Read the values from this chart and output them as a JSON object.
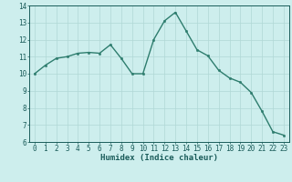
{
  "x": [
    0,
    1,
    2,
    3,
    4,
    5,
    6,
    7,
    8,
    9,
    10,
    11,
    12,
    13,
    14,
    15,
    16,
    17,
    18,
    19,
    20,
    21,
    22,
    23
  ],
  "y": [
    10.0,
    10.5,
    10.9,
    11.0,
    11.2,
    11.25,
    11.2,
    11.7,
    10.9,
    10.0,
    10.0,
    12.0,
    13.1,
    13.6,
    12.5,
    11.4,
    11.05,
    10.2,
    9.75,
    9.5,
    8.9,
    7.8,
    6.6,
    6.4
  ],
  "line_color": "#2e7d6e",
  "marker": "o",
  "marker_size": 1.8,
  "line_width": 1.0,
  "bg_color": "#cdeeed",
  "grid_color": "#b0d8d6",
  "xlabel": "Humidex (Indice chaleur)",
  "xlim": [
    -0.5,
    23.5
  ],
  "ylim": [
    6,
    14
  ],
  "yticks": [
    6,
    7,
    8,
    9,
    10,
    11,
    12,
    13,
    14
  ],
  "xticks": [
    0,
    1,
    2,
    3,
    4,
    5,
    6,
    7,
    8,
    9,
    10,
    11,
    12,
    13,
    14,
    15,
    16,
    17,
    18,
    19,
    20,
    21,
    22,
    23
  ],
  "tick_label_color": "#1a5c5a",
  "axis_color": "#1a5c5a",
  "xlabel_fontsize": 6.5,
  "tick_fontsize": 5.5
}
